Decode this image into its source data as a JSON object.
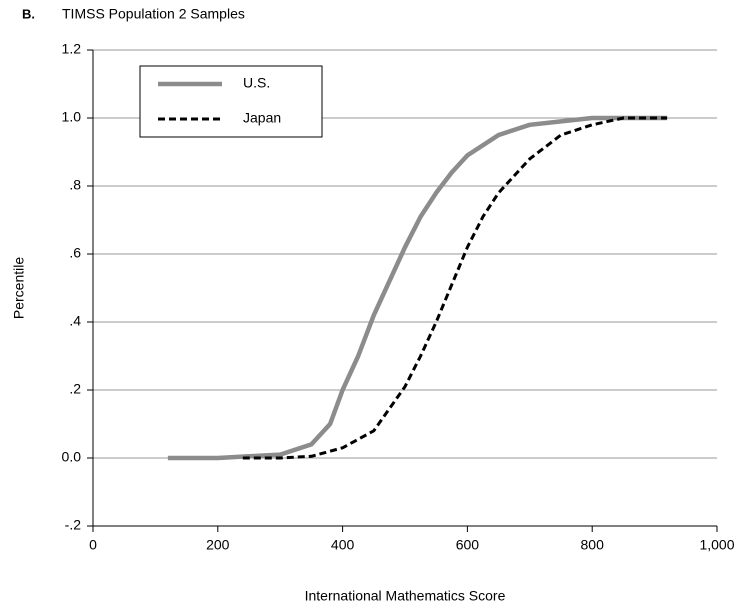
{
  "chart_data": {
    "type": "line",
    "panel_label": "B.",
    "title": "TIMSS Population 2 Samples",
    "x_label": "International Mathematics Score",
    "y_label": "Percentile",
    "xlim": [
      0,
      1000
    ],
    "xticks": [
      0,
      200,
      400,
      600,
      800,
      {
        "value": 1000,
        "label": "1,000"
      }
    ],
    "ylim": [
      -0.2,
      1.2
    ],
    "yticks": [
      {
        "value": -0.2,
        "label": "-.2"
      },
      {
        "value": 0,
        "label": "0.0"
      },
      {
        "value": 0.2,
        "label": ".2"
      },
      {
        "value": 0.4,
        "label": ".4"
      },
      {
        "value": 0.6,
        "label": ".6"
      },
      {
        "value": 0.8,
        "label": ".8"
      },
      {
        "value": 1.0,
        "label": "1.0"
      },
      1.2
    ],
    "grid": true,
    "legend": "upper left",
    "series": [
      {
        "name": "U.S.",
        "color": "#8c8c8c",
        "style": "solid",
        "x": [
          120,
          200,
          250,
          300,
          350,
          380,
          400,
          425,
          450,
          475,
          500,
          525,
          550,
          575,
          600,
          650,
          700,
          750,
          800,
          850,
          900,
          920
        ],
        "values": [
          0,
          0,
          0.005,
          0.01,
          0.04,
          0.1,
          0.2,
          0.3,
          0.42,
          0.52,
          0.62,
          0.71,
          0.78,
          0.84,
          0.89,
          0.95,
          0.98,
          0.99,
          1.0,
          1.0,
          1.0,
          1.0
        ]
      },
      {
        "name": "Japan",
        "color": "#000000",
        "style": "dashed",
        "x": [
          240,
          300,
          350,
          400,
          450,
          500,
          525,
          550,
          575,
          600,
          625,
          650,
          700,
          750,
          800,
          850,
          900,
          920
        ],
        "values": [
          0,
          0,
          0.005,
          0.03,
          0.08,
          0.21,
          0.3,
          0.4,
          0.51,
          0.62,
          0.71,
          0.78,
          0.88,
          0.95,
          0.98,
          1.0,
          1.0,
          1.0
        ]
      }
    ]
  }
}
